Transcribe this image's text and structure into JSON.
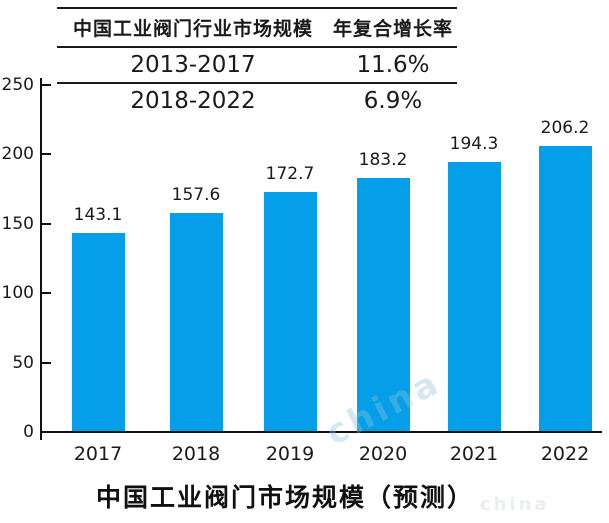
{
  "table": {
    "headers": [
      "中国工业阀门行业市场规模",
      "年复合增长率"
    ],
    "rows": [
      {
        "period": "2013-2017",
        "cagr": "11.6%"
      },
      {
        "period": "2018-2022",
        "cagr": "6.9%"
      }
    ]
  },
  "chart_data": {
    "type": "bar",
    "categories": [
      "2017",
      "2018",
      "2019",
      "2020",
      "2021",
      "2022"
    ],
    "values": [
      143.1,
      157.6,
      172.7,
      183.2,
      194.3,
      206.2
    ],
    "title": "中国工业阀门市场规模（预测）",
    "xlabel": "",
    "ylabel": "",
    "ylim": [
      0,
      250
    ],
    "yticks": [
      0,
      50,
      100,
      150,
      200,
      250
    ],
    "grid": false,
    "legend": "none",
    "bar_color": "#049fe8"
  },
  "watermark": {
    "diagonal_text": "china",
    "bottom_text": "china"
  },
  "colors": {
    "bar": "#049fe8",
    "text": "#1a1a1a",
    "axis": "#111111",
    "watermark": "#8fc3dd",
    "background": "#ffffff"
  }
}
